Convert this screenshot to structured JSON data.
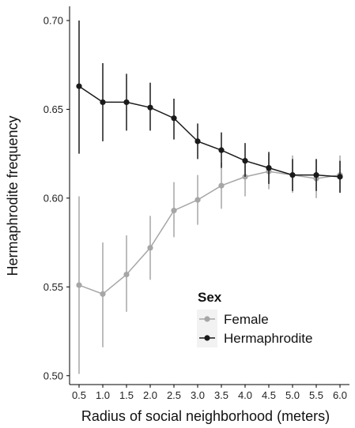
{
  "chart_data": {
    "type": "line",
    "xlabel": "Radius of social neighborhood (meters)",
    "ylabel": "Hermaphrodite frequency",
    "x": [
      0.5,
      1.0,
      1.5,
      2.0,
      2.5,
      3.0,
      3.5,
      4.0,
      4.5,
      5.0,
      5.5,
      6.0
    ],
    "x_tick_labels": [
      "0.5",
      "1.0",
      "1.5",
      "2.0",
      "2.5",
      "3.0",
      "3.5",
      "4.0",
      "4.5",
      "5.0",
      "5.5",
      "6.0"
    ],
    "y_ticks": [
      0.5,
      0.55,
      0.6,
      0.65,
      0.7
    ],
    "y_tick_labels": [
      "0.50",
      "0.55",
      "0.60",
      "0.65",
      "0.70"
    ],
    "xlim": [
      0.3,
      6.2
    ],
    "ylim": [
      0.495,
      0.708
    ],
    "grid": false,
    "legend": {
      "title": "Sex",
      "placement": "bottom-right"
    },
    "series": [
      {
        "name": "Female",
        "color": "#a6a6a6",
        "values": [
          0.551,
          0.546,
          0.557,
          0.572,
          0.593,
          0.599,
          0.607,
          0.612,
          0.615,
          0.613,
          0.611,
          0.613
        ],
        "lower": [
          0.501,
          0.516,
          0.536,
          0.554,
          0.578,
          0.585,
          0.594,
          0.601,
          0.605,
          0.603,
          0.6,
          0.603
        ],
        "upper": [
          0.601,
          0.575,
          0.579,
          0.59,
          0.609,
          0.613,
          0.62,
          0.623,
          0.625,
          0.624,
          0.622,
          0.624
        ]
      },
      {
        "name": "Hermaphrodite",
        "color": "#1a1a1a",
        "values": [
          0.663,
          0.654,
          0.654,
          0.651,
          0.645,
          0.632,
          0.627,
          0.621,
          0.617,
          0.613,
          0.613,
          0.612
        ],
        "lower": [
          0.625,
          0.632,
          0.638,
          0.638,
          0.633,
          0.622,
          0.617,
          0.612,
          0.608,
          0.604,
          0.604,
          0.603
        ],
        "upper": [
          0.7,
          0.676,
          0.67,
          0.665,
          0.656,
          0.642,
          0.637,
          0.631,
          0.626,
          0.622,
          0.622,
          0.621
        ]
      }
    ]
  }
}
